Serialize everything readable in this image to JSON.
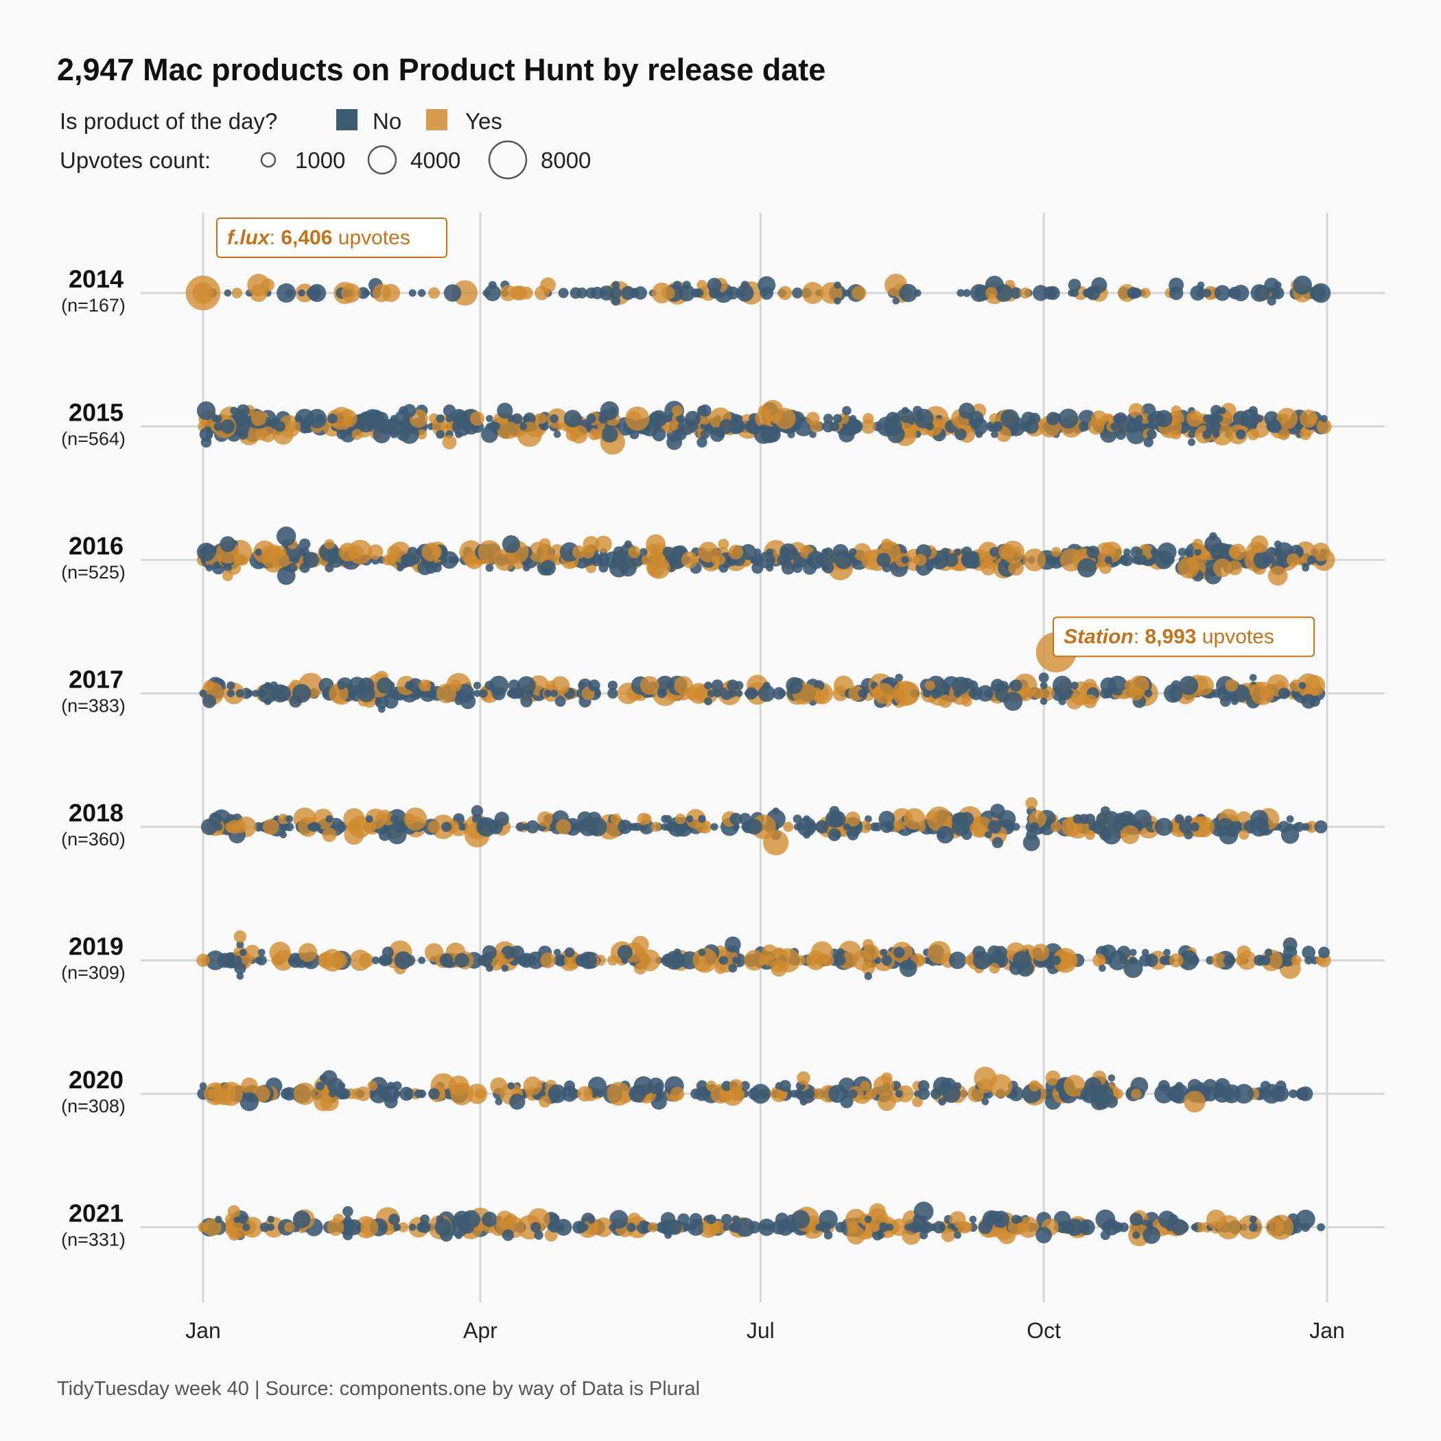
{
  "chart_data": {
    "type": "scatter",
    "title": "2,947 Mac products on Product Hunt by release date",
    "legend": {
      "color_title": "Is product of the day?",
      "color_items": [
        {
          "label": "No",
          "color": "#3d5a73"
        },
        {
          "label": "Yes",
          "color": "#d08a2e"
        }
      ],
      "size_title": "Upvotes count:",
      "size_items": [
        {
          "label": "1000",
          "value": 1000
        },
        {
          "label": "4000",
          "value": 4000
        },
        {
          "label": "8000",
          "value": 8000
        }
      ]
    },
    "x_axis": {
      "ticks": [
        "Jan",
        "Apr",
        "Jul",
        "Oct",
        "Jan"
      ],
      "tick_days": [
        0,
        90,
        181,
        273,
        365
      ],
      "range_days": [
        0,
        365
      ],
      "grid": true
    },
    "rows": [
      {
        "year": "2014",
        "count_label": "(n=167)",
        "n": 167
      },
      {
        "year": "2015",
        "count_label": "(n=564)",
        "n": 564
      },
      {
        "year": "2016",
        "count_label": "(n=525)",
        "n": 525
      },
      {
        "year": "2017",
        "count_label": "(n=383)",
        "n": 383
      },
      {
        "year": "2018",
        "count_label": "(n=360)",
        "n": 360
      },
      {
        "year": "2019",
        "count_label": "(n=309)",
        "n": 309
      },
      {
        "year": "2020",
        "count_label": "(n=308)",
        "n": 308
      },
      {
        "year": "2021",
        "count_label": "(n=331)",
        "n": 331
      }
    ],
    "highlights": [
      {
        "year": "2014",
        "date": "2014-01-01",
        "name": "f.lux",
        "upvotes": 6406,
        "upvotes_label": "6,406",
        "suffix": "upvotes",
        "potd": true
      },
      {
        "year": "2017",
        "date": "2017-10-05",
        "name": "Station",
        "upvotes": 8993,
        "upvotes_label": "8,993",
        "suffix": "upvotes",
        "potd": true
      }
    ],
    "caption": "TidyTuesday week 40 | Source: components.one by way of Data is Plural"
  }
}
